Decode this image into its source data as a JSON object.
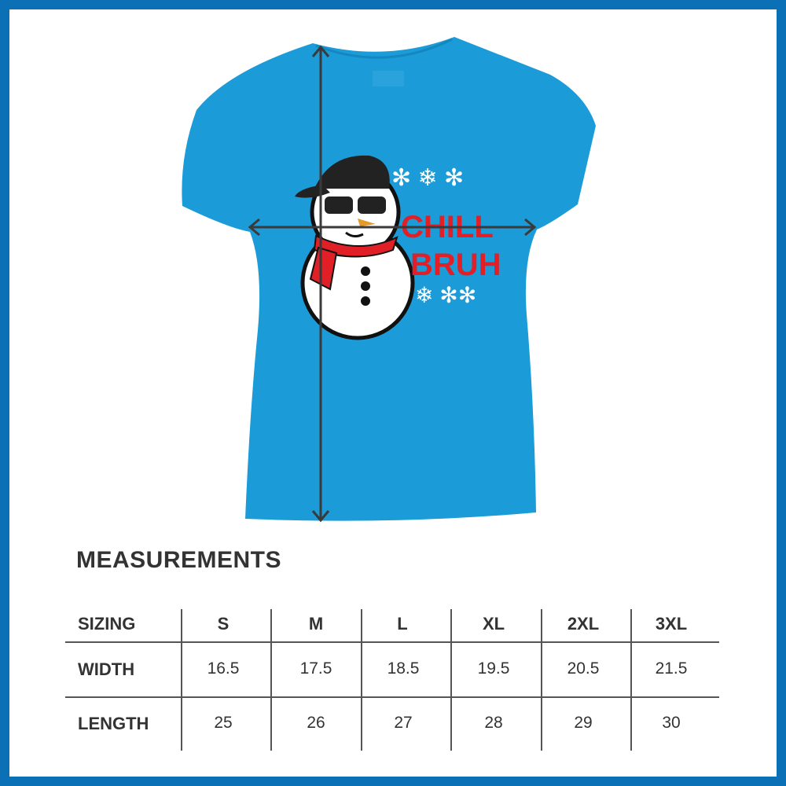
{
  "colors": {
    "frame": "#0b70b6",
    "shirt": "#1b9bd7",
    "text": "#333333",
    "design_red": "#e01f26"
  },
  "design": {
    "text_line1": "CHILL",
    "text_line2": "BRUH"
  },
  "measurements": {
    "title": "MEASUREMENTS",
    "header_label": "SIZING",
    "sizes": [
      "S",
      "M",
      "L",
      "XL",
      "2XL",
      "3XL"
    ],
    "rows": [
      {
        "label": "WIDTH",
        "values": [
          "16.5",
          "17.5",
          "18.5",
          "19.5",
          "20.5",
          "21.5"
        ]
      },
      {
        "label": "LENGTH",
        "values": [
          "25",
          "26",
          "27",
          "28",
          "29",
          "30"
        ]
      }
    ]
  }
}
